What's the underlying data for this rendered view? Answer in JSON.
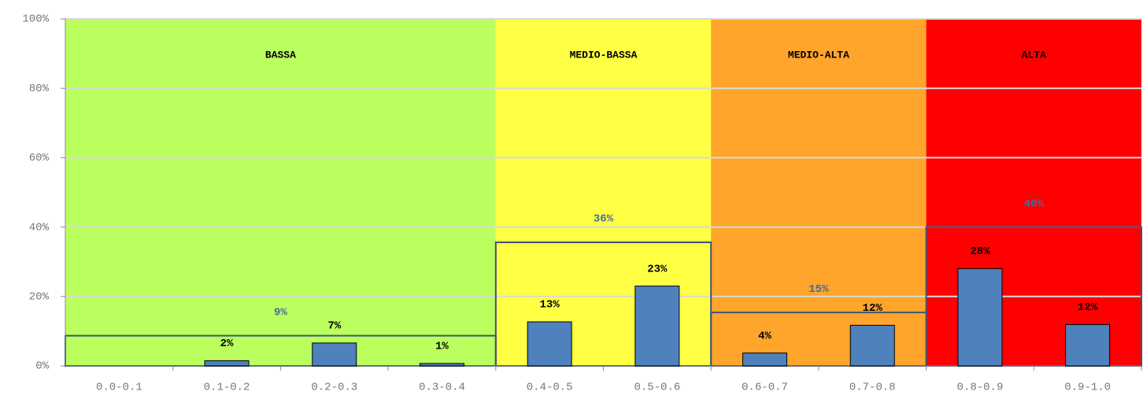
{
  "chart_data": {
    "type": "bar",
    "categories": [
      "0.0-0.1",
      "0.1-0.2",
      "0.2-0.3",
      "0.3-0.4",
      "0.4-0.5",
      "0.5-0.6",
      "0.6-0.7",
      "0.7-0.8",
      "0.8-0.9",
      "0.9-1.0"
    ],
    "values": [
      null,
      1.5,
      6.6,
      0.7,
      12.7,
      23,
      3.7,
      11.7,
      28,
      11.9
    ],
    "value_labels": [
      null,
      "2%",
      "7%",
      "1%",
      "13%",
      "23%",
      "4%",
      "12%",
      "28%",
      "12%"
    ],
    "color": "#4f81bd",
    "zones": [
      {
        "name": "BASSA",
        "bins": 4,
        "color": "#bbff5f",
        "total": 8.7,
        "total_label": "9%"
      },
      {
        "name": "MEDIO-BASSA",
        "bins": 2,
        "color": "#ffff44",
        "total": 35.6,
        "total_label": "36%"
      },
      {
        "name": "MEDIO-ALTA",
        "bins": 2,
        "color": "#ffa52b",
        "total": 15.4,
        "total_label": "15%"
      },
      {
        "name": "ALTA",
        "bins": 2,
        "color": "#ff0000",
        "total": 40,
        "total_label": "40%"
      }
    ],
    "ylim": [
      0,
      100
    ],
    "yticks": [
      {
        "value": 0,
        "label": "0%"
      },
      {
        "value": 20,
        "label": "20%"
      },
      {
        "value": 40,
        "label": "40%"
      },
      {
        "value": 60,
        "label": "60%"
      },
      {
        "value": 80,
        "label": "80%"
      },
      {
        "value": 100,
        "label": "100%"
      }
    ],
    "grid": true
  }
}
